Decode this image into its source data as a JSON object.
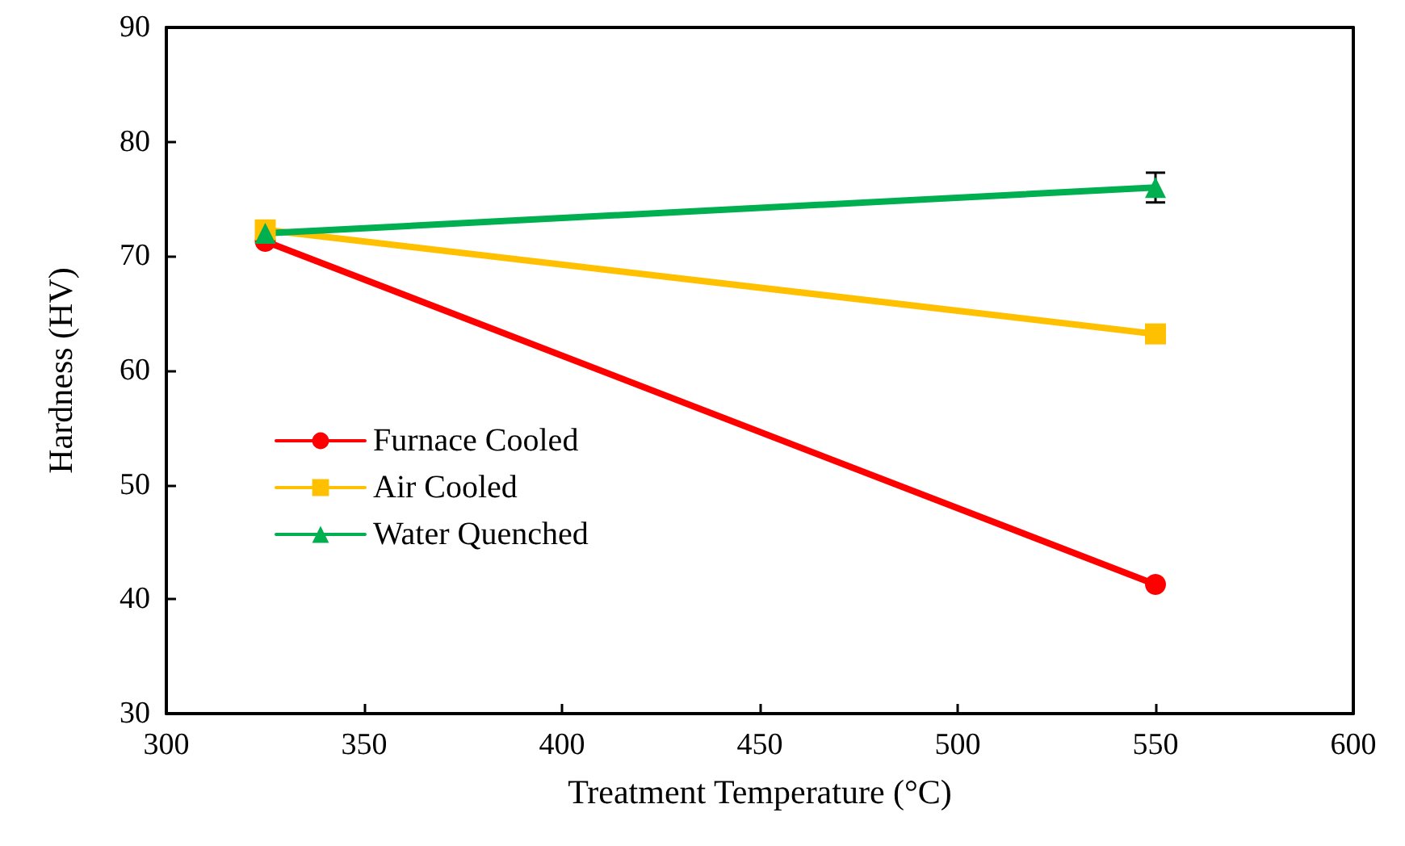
{
  "chart_data": {
    "type": "line",
    "xlabel": "Treatment Temperature (°C)",
    "ylabel": "Hardness (HV)",
    "x": [
      325,
      550
    ],
    "series": [
      {
        "name": "Furnace Cooled",
        "color": "#ff0000",
        "marker": "circle",
        "values": [
          71.3,
          41.3
        ]
      },
      {
        "name": "Air Cooled",
        "color": "#ffc000",
        "marker": "square",
        "values": [
          72.3,
          63.2
        ]
      },
      {
        "name": "Water Quenched",
        "color": "#00b050",
        "marker": "triangle",
        "values": [
          72,
          76
        ],
        "errors": [
          null,
          1.3
        ]
      }
    ],
    "xlim": [
      300,
      600
    ],
    "xticks": [
      300,
      350,
      400,
      450,
      500,
      550,
      600
    ],
    "ylim": [
      30,
      90
    ],
    "yticks": [
      30,
      40,
      50,
      60,
      70,
      80,
      90
    ],
    "grid": false,
    "legend": "left",
    "line_style": "solid"
  }
}
